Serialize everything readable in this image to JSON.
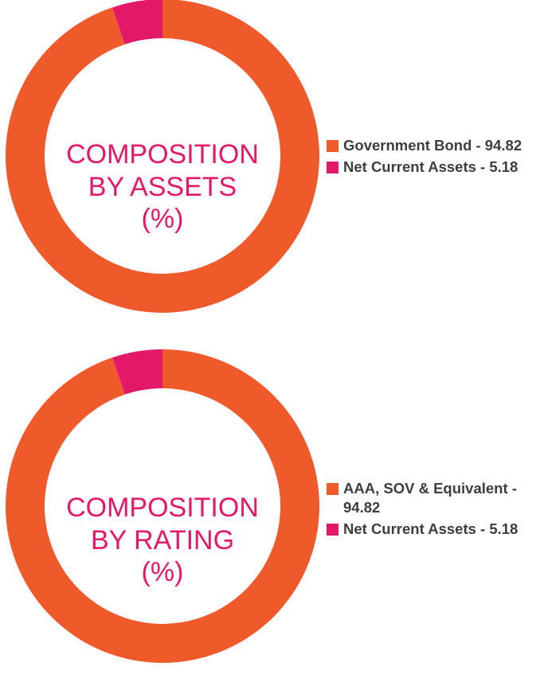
{
  "colors": {
    "orange": "#f05a2b",
    "pink": "#e31869",
    "legend_text": "#3d3d3d"
  },
  "chart_data": [
    {
      "type": "pie",
      "variant": "donut",
      "center_label": [
        "COMPOSITION",
        "BY ASSETS",
        "(%)"
      ],
      "categories": [
        "Government Bond",
        "Net Current Assets"
      ],
      "values": [
        94.82,
        5.18
      ],
      "colors": [
        "#f05a2b",
        "#e31869"
      ],
      "legend": [
        "Government Bond - 94.82",
        "Net Current Assets - 5.18"
      ],
      "legend_position": "right"
    },
    {
      "type": "pie",
      "variant": "donut",
      "center_label": [
        "COMPOSITION",
        "BY RATING",
        "(%)"
      ],
      "categories": [
        "AAA, SOV & Equivalent",
        "Net Current Assets"
      ],
      "values": [
        94.82,
        5.18
      ],
      "colors": [
        "#f05a2b",
        "#e31869"
      ],
      "legend": [
        "AAA, SOV & Equivalent - 94.82",
        "Net Current Assets - 5.18"
      ],
      "legend_position": "right"
    }
  ]
}
